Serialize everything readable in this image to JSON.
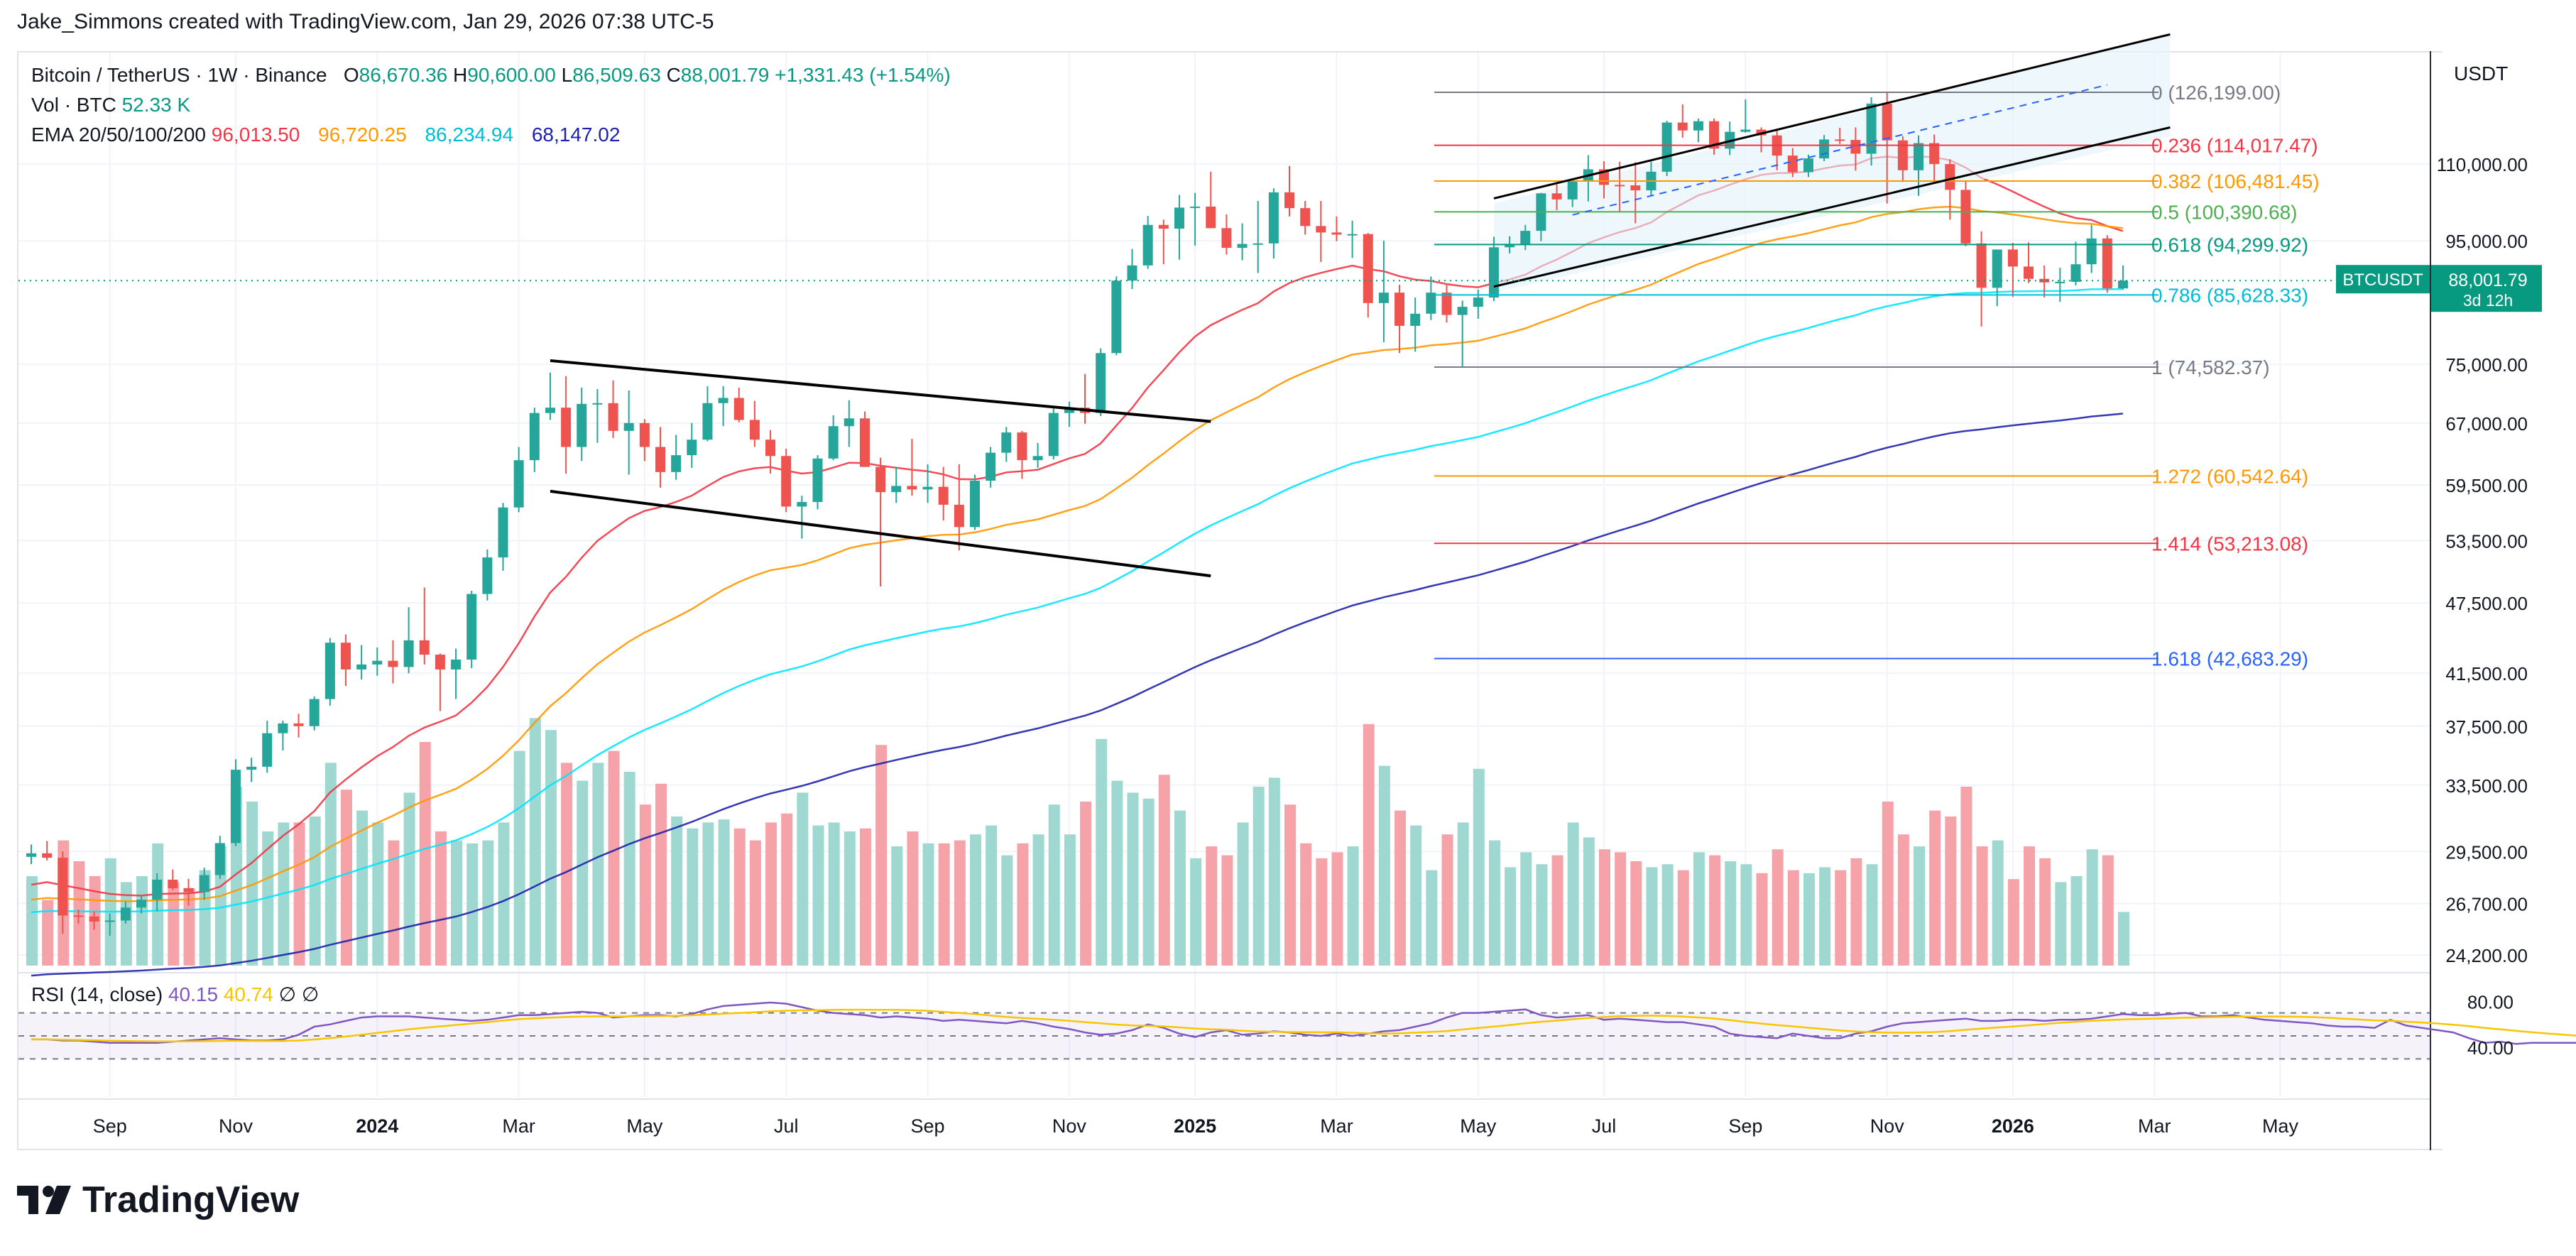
{
  "author_line": "Jake_Simmons created with TradingView.com, Jan 29, 2026 07:38 UTC-5",
  "header": {
    "symbol": "Bitcoin / TetherUS · 1W · Binance",
    "o_label": "O",
    "o_value": "86,670.36",
    "h_label": "H",
    "h_value": "90,600.00",
    "l_label": "L",
    "l_value": "86,509.63",
    "c_label": "C",
    "c_value": "88,001.79",
    "change": "+1,331.43 (+1.54%)",
    "vol_label": "Vol · BTC",
    "vol_value": "52.33 K",
    "ema_label": "EMA 20/50/100/200",
    "ema_values": [
      "96,013.50",
      "96,720.25",
      "86,234.94",
      "68,147.02"
    ],
    "ema_colors": [
      "#f23645",
      "#ff9800",
      "#00e5ff",
      "#1e22aa"
    ]
  },
  "rsi": {
    "label": "RSI (14, close)",
    "value": "40.15",
    "ma_value": "40.74",
    "symbols": [
      "∅",
      "∅"
    ],
    "axis_labels": [
      "80.00",
      "40.00"
    ],
    "series": [
      47,
      47,
      46,
      46,
      45,
      44,
      44,
      44,
      44,
      45,
      46,
      47,
      48,
      47,
      46,
      46,
      47,
      51,
      58,
      60,
      63,
      66,
      67,
      67,
      67,
      66,
      65,
      64,
      63,
      64,
      66,
      68,
      68,
      69,
      70,
      71,
      70,
      66,
      67,
      68,
      68,
      67,
      69,
      73,
      76,
      77,
      78,
      79,
      78,
      75,
      72,
      70,
      69,
      68,
      66,
      67,
      66,
      65,
      63,
      64,
      63,
      62,
      61,
      63,
      61,
      58,
      56,
      53,
      51,
      52,
      55,
      60,
      57,
      52,
      49,
      53,
      55,
      51,
      52,
      54,
      53,
      51,
      50,
      52,
      50,
      52,
      54,
      55,
      58,
      61,
      66,
      70,
      70,
      71,
      72,
      73,
      68,
      66,
      67,
      68,
      64,
      65,
      64,
      63,
      62,
      62,
      60,
      58,
      52,
      50,
      49,
      48,
      52,
      50,
      48,
      48,
      52,
      54,
      58,
      61,
      62,
      63,
      64,
      65,
      63,
      63,
      64,
      64,
      63,
      64,
      64,
      65,
      67,
      69,
      68,
      68,
      69,
      70,
      67,
      67,
      68,
      66,
      64,
      63,
      62,
      61,
      59,
      58,
      58,
      57,
      64,
      59,
      57,
      55,
      53,
      48,
      44,
      45,
      43,
      44,
      44,
      44,
      44,
      45,
      44,
      44,
      46,
      46,
      44,
      45
    ]
  },
  "price_axis": {
    "currency": "USDT",
    "ticks": [
      "110,000.00",
      "95,000.00",
      "75,000.00",
      "67,000.00",
      "59,500.00",
      "53,500.00",
      "47,500.00",
      "41,500.00",
      "37,500.00",
      "33,500.00",
      "29,500.00",
      "26,700.00",
      "24,200.00"
    ],
    "current_symbol": "BTCUSDT",
    "current_price": "88,001.79",
    "countdown": "3d 12h"
  },
  "time_axis": {
    "labels": [
      "Sep",
      "Nov",
      "2024",
      "Mar",
      "May",
      "Jul",
      "Sep",
      "Nov",
      "2025",
      "Mar",
      "May",
      "Jul",
      "Sep",
      "Nov",
      "2026",
      "Mar",
      "May"
    ],
    "bold": [
      "2024",
      "2025",
      "2026"
    ]
  },
  "fibonacci": [
    {
      "label": "0 (126,199.00)",
      "color": "#787b86"
    },
    {
      "label": "0.236 (114,017.47)",
      "color": "#f23645"
    },
    {
      "label": "0.382 (106,481.45)",
      "color": "#ff9800"
    },
    {
      "label": "0.5 (100,390.68)",
      "color": "#4caf50"
    },
    {
      "label": "0.618 (94,299.92)",
      "color": "#089981"
    },
    {
      "label": "0.786 (85,628.33)",
      "color": "#00bcd4"
    },
    {
      "label": "1 (74,582.37)",
      "color": "#787b86"
    },
    {
      "label": "1.272 (60,542.64)",
      "color": "#ff9800"
    },
    {
      "label": "1.414 (53,213.08)",
      "color": "#f23645"
    },
    {
      "label": "1.618 (42,683.29)",
      "color": "#2962ff"
    }
  ],
  "chart_data": {
    "type": "candlestick",
    "interval": "1W",
    "start_week": "2023-07-31",
    "candles": [
      [
        29200,
        29900,
        28800,
        29400
      ],
      [
        29400,
        30100,
        29000,
        29150
      ],
      [
        29150,
        29500,
        25200,
        26100
      ],
      [
        26100,
        26400,
        25700,
        26050
      ],
      [
        26050,
        26300,
        25400,
        25800
      ],
      [
        25800,
        26200,
        25100,
        25850
      ],
      [
        25850,
        26800,
        25700,
        26500
      ],
      [
        26500,
        27100,
        26200,
        26900
      ],
      [
        26900,
        28300,
        26300,
        27950
      ],
      [
        27950,
        28500,
        27400,
        27500
      ],
      [
        27500,
        28000,
        26600,
        27300
      ],
      [
        27300,
        28600,
        26900,
        28200
      ],
      [
        28200,
        30400,
        28000,
        29980
      ],
      [
        29980,
        35200,
        29800,
        34500
      ],
      [
        34500,
        35300,
        33700,
        34700
      ],
      [
        34700,
        37900,
        34300,
        37000
      ],
      [
        37000,
        37900,
        35800,
        37700
      ],
      [
        37700,
        38400,
        36700,
        37500
      ],
      [
        37500,
        39700,
        37200,
        39500
      ],
      [
        39500,
        44400,
        39000,
        44000
      ],
      [
        44000,
        44700,
        40500,
        41800
      ],
      [
        41800,
        43800,
        41000,
        42200
      ],
      [
        42200,
        43600,
        41300,
        42500
      ],
      [
        42500,
        44200,
        40700,
        42000
      ],
      [
        42000,
        47100,
        41500,
        44200
      ],
      [
        44200,
        48900,
        42200,
        43000
      ],
      [
        43000,
        43100,
        38600,
        41800
      ],
      [
        41800,
        43500,
        39500,
        42600
      ],
      [
        42600,
        48600,
        41900,
        48300
      ],
      [
        48300,
        52600,
        47700,
        51800
      ],
      [
        51800,
        57500,
        50500,
        57000
      ],
      [
        57000,
        64000,
        56500,
        62400
      ],
      [
        62400,
        69000,
        61000,
        68300
      ],
      [
        68300,
        73800,
        67400,
        69000
      ],
      [
        69000,
        73300,
        60800,
        64000
      ],
      [
        64000,
        71700,
        62300,
        69500
      ],
      [
        69500,
        71500,
        64500,
        69600
      ],
      [
        69600,
        72700,
        65100,
        66000
      ],
      [
        66000,
        71300,
        60700,
        67000
      ],
      [
        67000,
        67500,
        62300,
        64000
      ],
      [
        64000,
        66500,
        59200,
        61000
      ],
      [
        61000,
        65500,
        60100,
        63000
      ],
      [
        63000,
        67000,
        61500,
        64900
      ],
      [
        64900,
        71900,
        64700,
        69600
      ],
      [
        69600,
        71900,
        66600,
        70300
      ],
      [
        70300,
        71700,
        67100,
        67400
      ],
      [
        67400,
        69900,
        64000,
        64900
      ],
      [
        64900,
        66100,
        60800,
        62900
      ],
      [
        62900,
        63800,
        56500,
        57100
      ],
      [
        57100,
        58300,
        53700,
        57600
      ],
      [
        57600,
        63000,
        56800,
        62600
      ],
      [
        62600,
        68000,
        62400,
        66600
      ],
      [
        66600,
        70000,
        64000,
        67600
      ],
      [
        67600,
        68500,
        61800,
        61600
      ],
      [
        61600,
        62700,
        49000,
        58700
      ],
      [
        58700,
        61600,
        57500,
        59400
      ],
      [
        59400,
        65000,
        58300,
        59000
      ],
      [
        59000,
        61900,
        57500,
        59300
      ],
      [
        59300,
        61600,
        55600,
        57300
      ],
      [
        57300,
        61900,
        52500,
        54900
      ],
      [
        54900,
        60700,
        54600,
        60000
      ],
      [
        60000,
        64000,
        59200,
        63300
      ],
      [
        63300,
        66500,
        62200,
        65800
      ],
      [
        65800,
        66000,
        60200,
        62400
      ],
      [
        62400,
        64500,
        61500,
        62900
      ],
      [
        62900,
        69200,
        62500,
        68300
      ],
      [
        68300,
        69800,
        66500,
        69000
      ],
      [
        69000,
        73600,
        66900,
        68300
      ],
      [
        68300,
        77300,
        67900,
        76600
      ],
      [
        76600,
        88700,
        76300,
        88000
      ],
      [
        88000,
        93500,
        86600,
        90600
      ],
      [
        90600,
        99600,
        90000,
        97900
      ],
      [
        97900,
        98900,
        90800,
        97200
      ],
      [
        97200,
        103700,
        91600,
        101200
      ],
      [
        101200,
        104100,
        94100,
        101400
      ],
      [
        101400,
        108400,
        97300,
        97300
      ],
      [
        97300,
        99900,
        92500,
        93700
      ],
      [
        93700,
        98200,
        91500,
        94400
      ],
      [
        94400,
        102500,
        89300,
        94500
      ],
      [
        94500,
        105000,
        91800,
        104200
      ],
      [
        104200,
        109600,
        99500,
        101100
      ],
      [
        101100,
        102500,
        96100,
        97700
      ],
      [
        97700,
        102500,
        91200,
        96500
      ],
      [
        96500,
        99500,
        94900,
        96100
      ],
      [
        96100,
        98700,
        91900,
        96200
      ],
      [
        96200,
        96400,
        82000,
        84300
      ],
      [
        84300,
        95000,
        78200,
        86000
      ],
      [
        86000,
        87300,
        76600,
        80700
      ],
      [
        80700,
        85200,
        76800,
        82600
      ],
      [
        82600,
        88700,
        81600,
        86000
      ],
      [
        86000,
        87500,
        81200,
        82400
      ],
      [
        82400,
        84700,
        74500,
        83700
      ],
      [
        83700,
        86500,
        81800,
        85200
      ],
      [
        85200,
        95700,
        84600,
        93800
      ],
      [
        93800,
        95800,
        92700,
        94300
      ],
      [
        94300,
        97900,
        93300,
        96800
      ],
      [
        96800,
        104100,
        94900,
        104000
      ],
      [
        104000,
        105800,
        100700,
        102800
      ],
      [
        102800,
        106500,
        101300,
        106400
      ],
      [
        106400,
        111900,
        102400,
        108900
      ],
      [
        108900,
        110600,
        103000,
        105700
      ],
      [
        105700,
        110500,
        100400,
        105600
      ],
      [
        105600,
        110400,
        98200,
        104600
      ],
      [
        104600,
        110500,
        103400,
        108400
      ],
      [
        108400,
        119500,
        107500,
        119100
      ],
      [
        119100,
        123300,
        115700,
        117300
      ],
      [
        117300,
        120000,
        114700,
        119400
      ],
      [
        119400,
        120000,
        112000,
        113300
      ],
      [
        113300,
        119300,
        111900,
        117000
      ],
      [
        117000,
        124500,
        116800,
        117500
      ],
      [
        117500,
        118000,
        112500,
        116200
      ],
      [
        116200,
        117300,
        108700,
        111800
      ],
      [
        111800,
        113400,
        107300,
        108300
      ],
      [
        108300,
        112000,
        107300,
        111200
      ],
      [
        111200,
        116300,
        110600,
        115300
      ],
      [
        115300,
        117900,
        114300,
        115200
      ],
      [
        115200,
        118000,
        108600,
        112200
      ],
      [
        112200,
        125000,
        109700,
        123500
      ],
      [
        123500,
        126200,
        102000,
        115100
      ],
      [
        115100,
        116000,
        106300,
        108700
      ],
      [
        108700,
        116200,
        103500,
        114500
      ],
      [
        114500,
        116400,
        106300,
        110000
      ],
      [
        110000,
        111000,
        98900,
        104700
      ],
      [
        104700,
        106500,
        94000,
        94500
      ],
      [
        94500,
        96700,
        80600,
        86800
      ],
      [
        86800,
        93000,
        83800,
        93400
      ],
      [
        93400,
        94600,
        85300,
        90400
      ],
      [
        90400,
        94700,
        87600,
        88300
      ],
      [
        88300,
        90600,
        85200,
        87700
      ],
      [
        87700,
        90200,
        84500,
        87800
      ],
      [
        87800,
        94800,
        87200,
        90800
      ],
      [
        90800,
        97900,
        89300,
        95400
      ],
      [
        95400,
        96000,
        86000,
        86700
      ],
      [
        86700,
        90600,
        86500,
        88000
      ]
    ],
    "volume_millions_btc": [],
    "volume_relative": [
      0.3,
      0.22,
      0.42,
      0.35,
      0.3,
      0.36,
      0.28,
      0.3,
      0.41,
      0.28,
      0.26,
      0.32,
      0.4,
      0.6,
      0.55,
      0.45,
      0.48,
      0.48,
      0.5,
      0.68,
      0.59,
      0.52,
      0.48,
      0.42,
      0.58,
      0.75,
      0.45,
      0.42,
      0.41,
      0.42,
      0.48,
      0.72,
      0.83,
      0.79,
      0.68,
      0.62,
      0.68,
      0.72,
      0.65,
      0.54,
      0.61,
      0.5,
      0.46,
      0.48,
      0.49,
      0.46,
      0.42,
      0.48,
      0.51,
      0.58,
      0.47,
      0.48,
      0.45,
      0.46,
      0.74,
      0.4,
      0.45,
      0.41,
      0.41,
      0.42,
      0.44,
      0.47,
      0.37,
      0.41,
      0.44,
      0.54,
      0.44,
      0.55,
      0.76,
      0.62,
      0.58,
      0.56,
      0.64,
      0.52,
      0.36,
      0.4,
      0.37,
      0.48,
      0.6,
      0.63,
      0.54,
      0.41,
      0.36,
      0.38,
      0.4,
      0.81,
      0.67,
      0.52,
      0.47,
      0.32,
      0.44,
      0.48,
      0.66,
      0.42,
      0.33,
      0.38,
      0.34,
      0.37,
      0.48,
      0.43,
      0.39,
      0.38,
      0.35,
      0.33,
      0.34,
      0.32,
      0.38,
      0.37,
      0.35,
      0.34,
      0.31,
      0.39,
      0.32,
      0.31,
      0.33,
      0.32,
      0.36,
      0.34,
      0.55,
      0.44,
      0.4,
      0.52,
      0.5,
      0.6,
      0.4,
      0.42,
      0.29,
      0.4,
      0.36,
      0.28,
      0.3,
      0.39,
      0.37,
      0.18
    ],
    "ema": [
      {
        "name": "EMA 20",
        "color": "#f23645"
      },
      {
        "name": "EMA 50",
        "color": "#ff9800"
      },
      {
        "name": "EMA 100",
        "color": "#00e5ff"
      },
      {
        "name": "EMA 200",
        "color": "#1e22aa"
      }
    ],
    "ylim_log": [
      24200,
      126199
    ],
    "scale": "log"
  }
}
